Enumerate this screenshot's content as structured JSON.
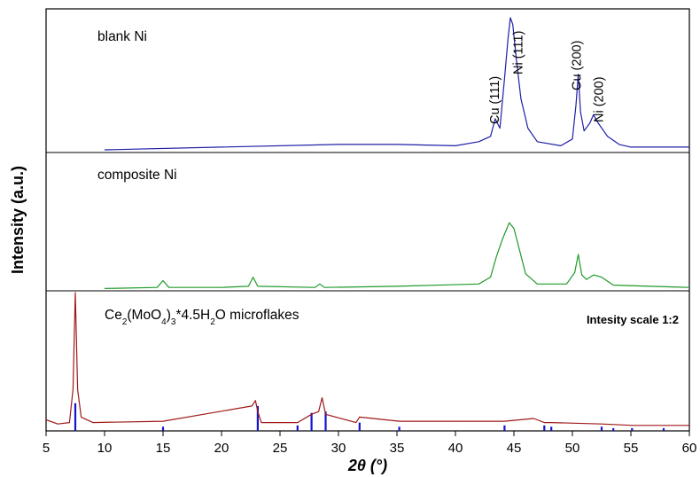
{
  "chart_data": {
    "type": "line",
    "title": "",
    "xlabel": "2θ (°)",
    "ylabel": "Intensity (a.u.)",
    "xlim": [
      5,
      60
    ],
    "x_ticks": [
      5,
      10,
      15,
      20,
      25,
      30,
      35,
      40,
      45,
      50,
      55,
      60
    ],
    "grid": false,
    "legend": "none",
    "series": [
      {
        "panel": "top",
        "name": "blank Ni",
        "color": "#1f1fa8",
        "x": [
          10,
          20,
          30,
          35,
          40,
          42,
          43,
          43.4,
          43.8,
          44.2,
          44.5,
          44.7,
          44.9,
          45.2,
          45.6,
          46.2,
          47,
          49,
          50,
          50.3,
          50.5,
          50.7,
          51,
          51.5,
          51.8,
          52.2,
          53,
          54,
          55,
          60
        ],
        "y": [
          0.02,
          0.04,
          0.06,
          0.06,
          0.05,
          0.08,
          0.12,
          0.25,
          0.18,
          0.55,
          0.85,
          1.0,
          0.95,
          0.7,
          0.4,
          0.18,
          0.08,
          0.05,
          0.1,
          0.35,
          0.58,
          0.3,
          0.16,
          0.22,
          0.28,
          0.22,
          0.12,
          0.06,
          0.04,
          0.04
        ]
      },
      {
        "panel": "middle",
        "name": "composite Ni",
        "color": "#1f9a2a",
        "x": [
          10,
          14.5,
          15,
          15.5,
          20,
          22.3,
          22.7,
          23.1,
          28,
          28.4,
          28.8,
          35,
          42,
          43,
          43.5,
          44,
          44.6,
          45,
          45.5,
          46,
          47,
          49.5,
          50.2,
          50.5,
          50.8,
          51.2,
          51.8,
          52.5,
          53.5,
          60
        ],
        "y": [
          0.02,
          0.03,
          0.09,
          0.03,
          0.03,
          0.04,
          0.12,
          0.04,
          0.03,
          0.06,
          0.03,
          0.04,
          0.06,
          0.12,
          0.3,
          0.45,
          0.6,
          0.55,
          0.35,
          0.15,
          0.06,
          0.06,
          0.16,
          0.32,
          0.14,
          0.1,
          0.14,
          0.12,
          0.05,
          0.03
        ]
      },
      {
        "panel": "bottom",
        "name": "Ce2(MoO4)3*4.5H2O microflakes",
        "color": "#a01818",
        "x": [
          5,
          6,
          7,
          7.3,
          7.5,
          7.7,
          8,
          9,
          15,
          22.6,
          22.9,
          23.1,
          23.4,
          26.5,
          27.7,
          28.3,
          28.6,
          28.9,
          31.5,
          31.8,
          35.2,
          44.2,
          46.7,
          47.6,
          48.2,
          52.5,
          55.2,
          60
        ],
        "y": [
          0.08,
          0.05,
          0.06,
          0.3,
          1.0,
          0.3,
          0.1,
          0.06,
          0.07,
          0.18,
          0.22,
          0.14,
          0.06,
          0.06,
          0.12,
          0.14,
          0.24,
          0.12,
          0.06,
          0.1,
          0.07,
          0.07,
          0.09,
          0.06,
          0.06,
          0.05,
          0.04,
          0.04
        ]
      }
    ],
    "reference_lines": {
      "panel": "bottom",
      "color": "#1414cc",
      "positions": [
        7.5,
        15.0,
        23.1,
        26.5,
        27.7,
        28.9,
        31.8,
        35.2,
        44.2,
        47.6,
        48.2,
        52.5,
        53.5,
        55.1,
        57.8
      ],
      "heights": [
        0.2,
        0.03,
        0.18,
        0.04,
        0.13,
        0.14,
        0.06,
        0.03,
        0.04,
        0.04,
        0.03,
        0.03,
        0.02,
        0.02,
        0.02
      ]
    },
    "panel_labels": [
      "blank Ni",
      "composite Ni"
    ],
    "bottom_label": {
      "pre": "Ce",
      "sub1": "2",
      "mid": "(MoO",
      "sub2": "4",
      "mid2": ")",
      "sub3": "3",
      "mid3": "*4.5H",
      "sub4": "2",
      "post": "O  microflakes"
    },
    "annotations": [
      {
        "text": "Cu (111)",
        "x": 43.4,
        "panel": "top"
      },
      {
        "text": "Ni (111)",
        "x": 45.4,
        "panel": "top"
      },
      {
        "text": "Cu (200)",
        "x": 50.4,
        "panel": "top"
      },
      {
        "text": "Ni (200)",
        "x": 52.3,
        "panel": "top"
      }
    ],
    "scale_note": "Intesity scale 1:2"
  }
}
